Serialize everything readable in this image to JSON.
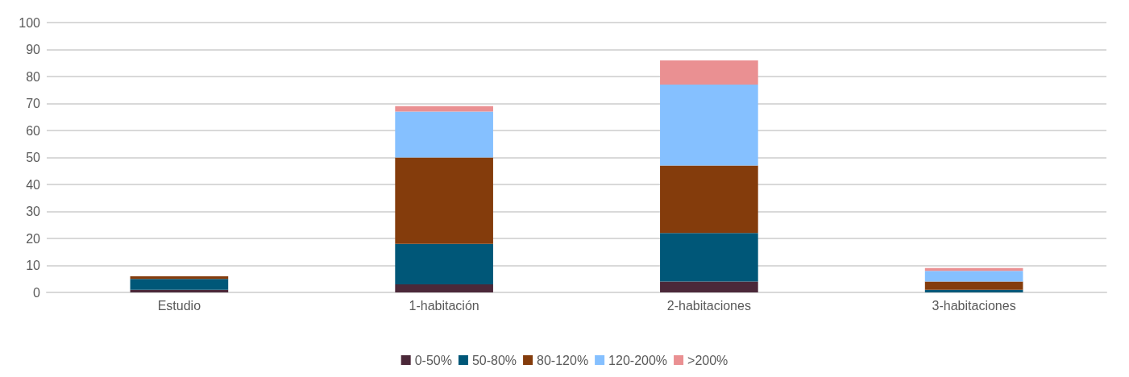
{
  "chart_data": {
    "type": "bar",
    "stacked": true,
    "categories": [
      "Estudio",
      "1-habitación",
      "2-habitaciones",
      "3-habitaciones"
    ],
    "series": [
      {
        "name": "0-50%",
        "color": "#4b2839",
        "values": [
          1,
          3,
          4,
          0
        ]
      },
      {
        "name": "50-80%",
        "color": "#005778",
        "values": [
          4,
          15,
          18,
          1
        ]
      },
      {
        "name": "80-120%",
        "color": "#843c0c",
        "values": [
          1,
          32,
          25,
          3
        ]
      },
      {
        "name": "120-200%",
        "color": "#85c0ff",
        "values": [
          0,
          17,
          30,
          4
        ]
      },
      {
        "name": ">200%",
        "color": "#ea9092",
        "values": [
          0,
          2,
          9,
          1
        ]
      }
    ],
    "ylim": [
      0,
      100
    ],
    "yticks": [
      0,
      10,
      20,
      30,
      40,
      50,
      60,
      70,
      80,
      90,
      100
    ],
    "grid": "y",
    "legend": "bottom"
  }
}
